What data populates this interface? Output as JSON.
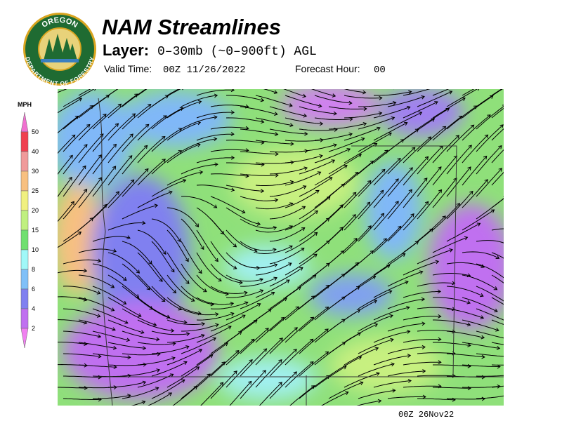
{
  "logo": {
    "top_text": "OREGON",
    "bottom_text": "DEPARTMENT OF FORESTRY"
  },
  "header": {
    "title": "NAM Streamlines",
    "layer_label": "Layer:",
    "layer_value": "0–30mb (~0–900ft) AGL",
    "valid_time_label": "Valid Time:",
    "valid_time": "00Z 11/26/2022",
    "forecast_hour_label": "Forecast Hour:",
    "forecast_hour": "00"
  },
  "legend": {
    "unit": "MPH",
    "labels": [
      50,
      40,
      30,
      25,
      20,
      15,
      10,
      8,
      6,
      4,
      2
    ]
  },
  "footer": {
    "timestamp": "00Z 26Nov22"
  }
}
